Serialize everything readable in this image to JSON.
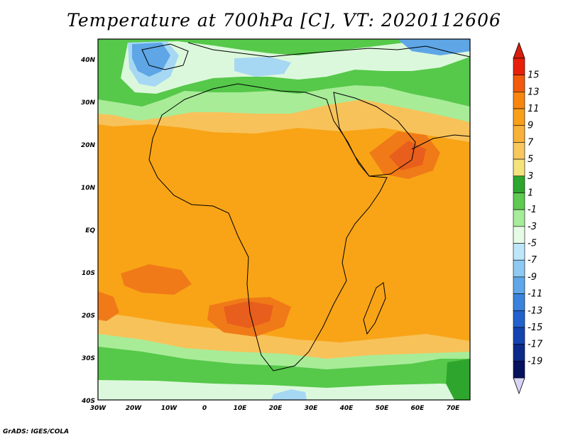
{
  "title": "Temperature at 700hPa [C], VT: 2020112606",
  "credit": "GrADS: IGES/COLA",
  "lat_labels": [
    "40N",
    "30N",
    "20N",
    "10N",
    "EQ",
    "10S",
    "20S",
    "30S",
    "40S"
  ],
  "lon_labels": [
    "30W",
    "20W",
    "10W",
    "0",
    "10E",
    "20E",
    "30E",
    "40E",
    "50E",
    "60E",
    "70E"
  ],
  "colorbar": {
    "levels": [
      "15",
      "13",
      "11",
      "9",
      "7",
      "5",
      "3",
      "1",
      "-1",
      "-3",
      "-5",
      "-7",
      "-9",
      "-11",
      "-13",
      "-15",
      "-17",
      "-19"
    ],
    "colors": [
      "#e8200a",
      "#f25a0c",
      "#f8860e",
      "#fa9f1a",
      "#f8b23a",
      "#f8c85e",
      "#f4e27c",
      "#2ea62e",
      "#5fca50",
      "#a6ec9a",
      "#e6fbe6",
      "#bde6f9",
      "#8ecaf2",
      "#5fa7e8",
      "#3a83dc",
      "#2262cc",
      "#1444b2",
      "#0b2a8a",
      "#07125e"
    ],
    "top_arrow_color": "#d81e0e",
    "bottom_arrow_color": "#d8d4f6"
  },
  "field_colors": {
    "background": "#f8a416",
    "warm": "#f07a18",
    "hot": "#e85e1c",
    "mild": "#f8c25a",
    "light_green": "#a8ec98",
    "green": "#56c84a",
    "dark_green": "#2ea62e",
    "pale": "#dcf8dc",
    "light_blue": "#a6d8f4",
    "blue": "#5ea6e6"
  }
}
